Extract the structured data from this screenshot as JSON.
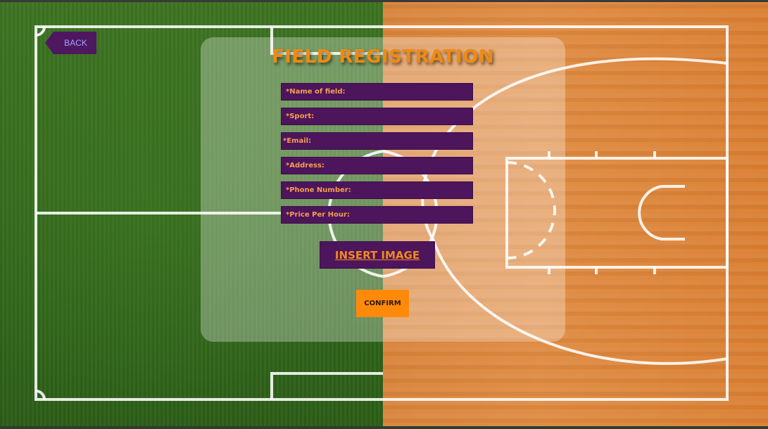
{
  "nav": {
    "back_label": "BACK"
  },
  "form": {
    "title": "FIELD REGISTRATION",
    "fields": [
      {
        "label": "*Name of field:"
      },
      {
        "label": "*Sport:"
      },
      {
        "label": "*Email:"
      },
      {
        "label": "*Address:"
      },
      {
        "label": "*Phone Number:"
      },
      {
        "label": "*Price Per Hour:"
      }
    ],
    "insert_image_label": "INSERT IMAGE",
    "confirm_label": "CONFIRM"
  },
  "colors": {
    "accent_orange": "#f08a12",
    "field_purple": "#4d155c",
    "confirm_orange": "#ff8a0a",
    "grass_green": "#34691d",
    "court_wood": "#db8339"
  }
}
